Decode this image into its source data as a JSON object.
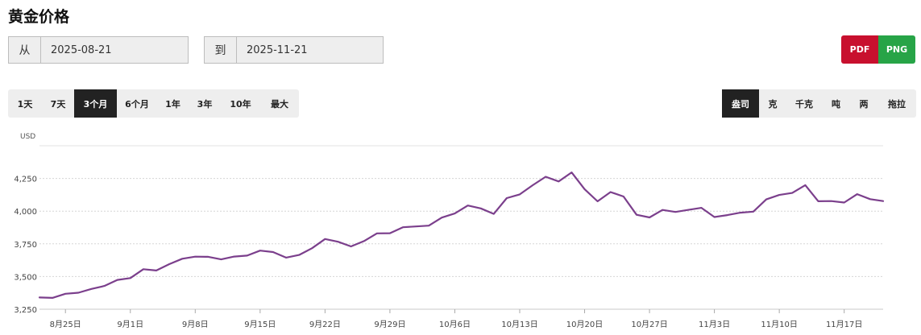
{
  "page_title": "黄金价格",
  "date_range": {
    "from_label": "从",
    "from_value": "2025-08-21",
    "to_label": "到",
    "to_value": "2025-11-21"
  },
  "export": {
    "pdf_label": "PDF",
    "png_label": "PNG",
    "pdf_color": "#c8102e",
    "png_color": "#27a447"
  },
  "range_buttons": [
    "1天",
    "7天",
    "3个月",
    "6个月",
    "1年",
    "3年",
    "10年",
    "最大"
  ],
  "range_active": "3个月",
  "unit_buttons": [
    "盎司",
    "克",
    "千克",
    "吨",
    "两",
    "拖拉"
  ],
  "unit_active": "盎司",
  "chart_data": {
    "type": "line",
    "currency_label": "USD",
    "line_color": "#7b3f8c",
    "grid": true,
    "ylim": [
      3250,
      4500
    ],
    "y_ticks": [
      3250,
      3500,
      3750,
      4000,
      4250
    ],
    "y_tick_labels": [
      "3,250",
      "3,500",
      "3,750",
      "4,000",
      "4,250"
    ],
    "x_ticks": [
      "8月25日",
      "9月1日",
      "9月8日",
      "9月15日",
      "9月22日",
      "9月29日",
      "10月6日",
      "10月13日",
      "10月20日",
      "10月27日",
      "11月3日",
      "11月10日",
      "11月17日"
    ],
    "x_tick_positions": [
      2,
      7,
      12,
      17,
      22,
      27,
      32,
      37,
      42,
      47,
      52,
      57,
      62
    ],
    "series": [
      {
        "values": [
          3340,
          3337,
          3368,
          3376,
          3405,
          3428,
          3474,
          3488,
          3556,
          3546,
          3595,
          3636,
          3652,
          3651,
          3631,
          3653,
          3660,
          3698,
          3687,
          3645,
          3665,
          3717,
          3787,
          3766,
          3730,
          3771,
          3830,
          3831,
          3877,
          3883,
          3889,
          3951,
          3982,
          4043,
          4021,
          3979,
          4100,
          4128,
          4198,
          4263,
          4227,
          4296,
          4168,
          4075,
          4146,
          4112,
          3972,
          3952,
          4009,
          3994,
          4010,
          4025,
          3955,
          3970,
          3988,
          3996,
          4090,
          4124,
          4139,
          4199,
          4076,
          4077,
          4066,
          4130,
          4092,
          4077
        ]
      }
    ]
  }
}
